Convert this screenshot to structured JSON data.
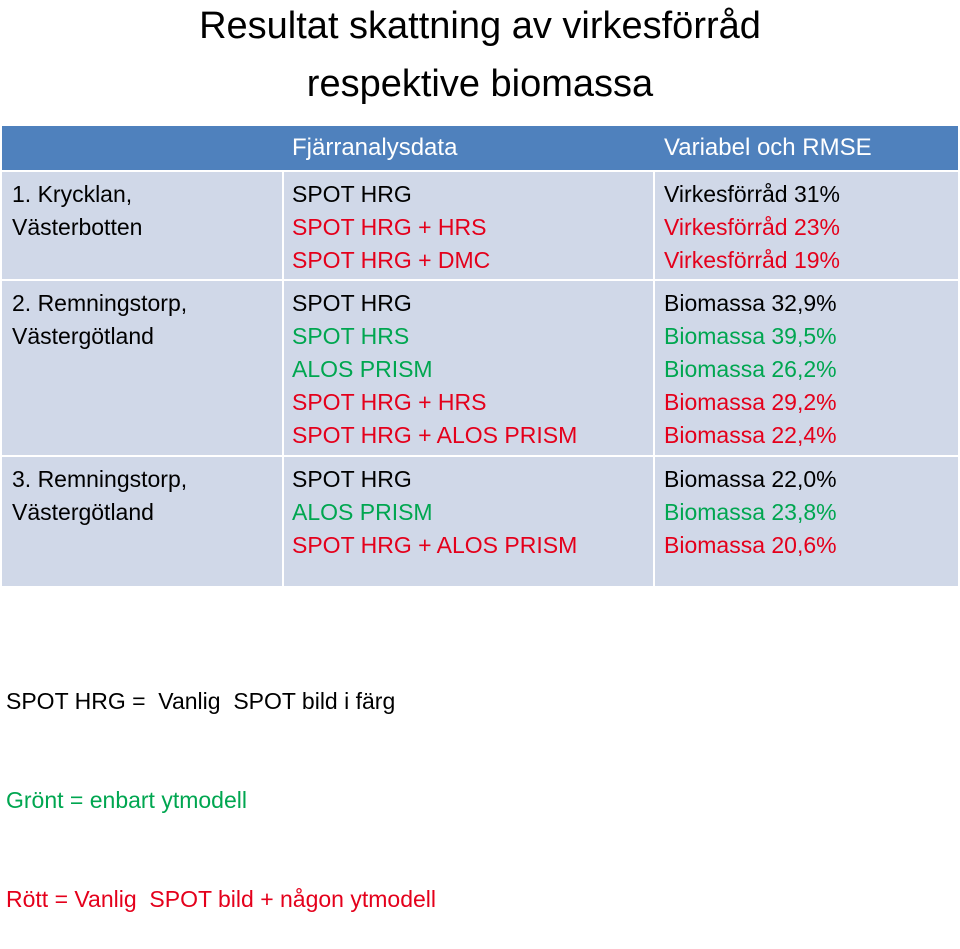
{
  "title": {
    "line1": "Resultat skattning av virkesförråd",
    "line2": "respektive biomassa"
  },
  "table": {
    "headers": [
      "",
      "Fjärranalysdata",
      "Variabel och RMSE"
    ],
    "rows": [
      {
        "region": [
          "1. Krycklan,",
          "Västerbotten"
        ],
        "sensors": [
          {
            "text": "SPOT HRG",
            "color": "black"
          },
          {
            "text": "SPOT HRG + HRS",
            "color": "red"
          },
          {
            "text": "SPOT HRG + DMC",
            "color": "red"
          }
        ],
        "results": [
          {
            "text": "Virkesförråd 31%",
            "color": "black"
          },
          {
            "text": "Virkesförråd 23%",
            "color": "red"
          },
          {
            "text": "Virkesförråd  19%",
            "color": "red"
          }
        ]
      },
      {
        "region": [
          "2. Remningstorp,",
          "Västergötland"
        ],
        "sensors": [
          {
            "text": "SPOT HRG",
            "color": "black"
          },
          {
            "text": "SPOT HRS",
            "color": "green"
          },
          {
            "text": "ALOS PRISM",
            "color": "green"
          },
          {
            "text": "SPOT HRG + HRS",
            "color": "red"
          },
          {
            "text": "SPOT HRG + ALOS PRISM",
            "color": "red"
          }
        ],
        "results": [
          {
            "text": "Biomassa 32,9%",
            "color": "black"
          },
          {
            "text": "Biomassa 39,5%",
            "color": "green"
          },
          {
            "text": "Biomassa 26,2%",
            "color": "green"
          },
          {
            "text": "Biomassa 29,2%",
            "color": "red"
          },
          {
            "text": "Biomassa 22,4%",
            "color": "red"
          }
        ]
      },
      {
        "region": [
          "3. Remningstorp,",
          "Västergötland"
        ],
        "sensors": [
          {
            "text": "SPOT HRG",
            "color": "black"
          },
          {
            "text": "ALOS PRISM",
            "color": "green"
          },
          {
            "text": "SPOT HRG + ALOS PRISM",
            "color": "red"
          }
        ],
        "results": [
          {
            "text": "Biomassa 22,0%",
            "color": "black"
          },
          {
            "text": "Biomassa 23,8%",
            "color": "green"
          },
          {
            "text": "Biomassa 20,6%",
            "color": "red"
          }
        ]
      }
    ]
  },
  "legend": [
    {
      "text": "SPOT HRG =  Vanlig  SPOT bild i färg",
      "color": "black"
    },
    {
      "text": "Grönt = enbart ytmodell",
      "color": "green"
    },
    {
      "text": "Rött = Vanlig  SPOT bild + någon ytmodell",
      "color": "red"
    }
  ],
  "colors": {
    "header_bg": "#4f81bd",
    "row_bg": "#d0d8e8",
    "black": "#000000",
    "green": "#00a650",
    "red": "#e4001b"
  }
}
